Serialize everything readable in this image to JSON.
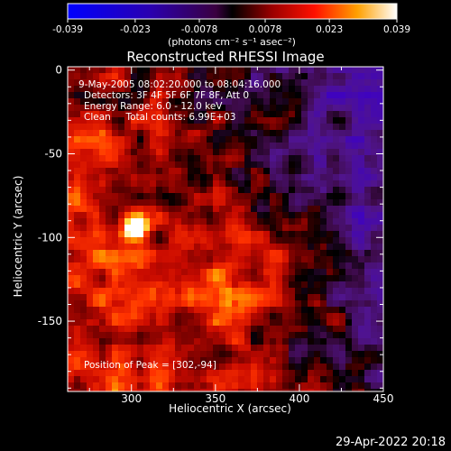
{
  "chart_data": {
    "type": "heatmap",
    "title": "Reconstructed RHESSI Image",
    "xlabel": "Heliocentric X (arcsec)",
    "ylabel": "Heliocentric Y (arcsec)",
    "xlim": [
      262,
      450
    ],
    "ylim": [
      -192,
      2
    ],
    "x_ticks": [
      300,
      350,
      400,
      450
    ],
    "y_ticks": [
      0,
      -50,
      -100,
      -150
    ],
    "colorbar": {
      "range": [
        -0.039,
        0.039
      ],
      "ticks": [
        "-0.039",
        "-0.023",
        "-0.0078",
        "0.0078",
        "0.023",
        "0.039"
      ],
      "tick_values": [
        -0.039,
        -0.023,
        -0.0078,
        0.0078,
        0.023,
        0.039
      ],
      "unit_label": "(photons cm⁻² s⁻¹ asec⁻²)"
    },
    "info_lines": [
      "9-May-2005 08:02:20.000 to 08:04:16.000",
      "Detectors: 3F 4F 5F 6F 7F 8F, Att 0",
      "Energy Range: 6.0 - 12.0 keV",
      "Clean     Total counts: 6.99E+03"
    ],
    "peak_label": "Position of Peak = [302,-94]",
    "peak": {
      "x": 302,
      "y": -94,
      "value": 0.039
    }
  },
  "footer": {
    "timestamp": "29-Apr-2022 20:18"
  },
  "colors": {
    "background": "#000000",
    "text": "#ffffff"
  }
}
